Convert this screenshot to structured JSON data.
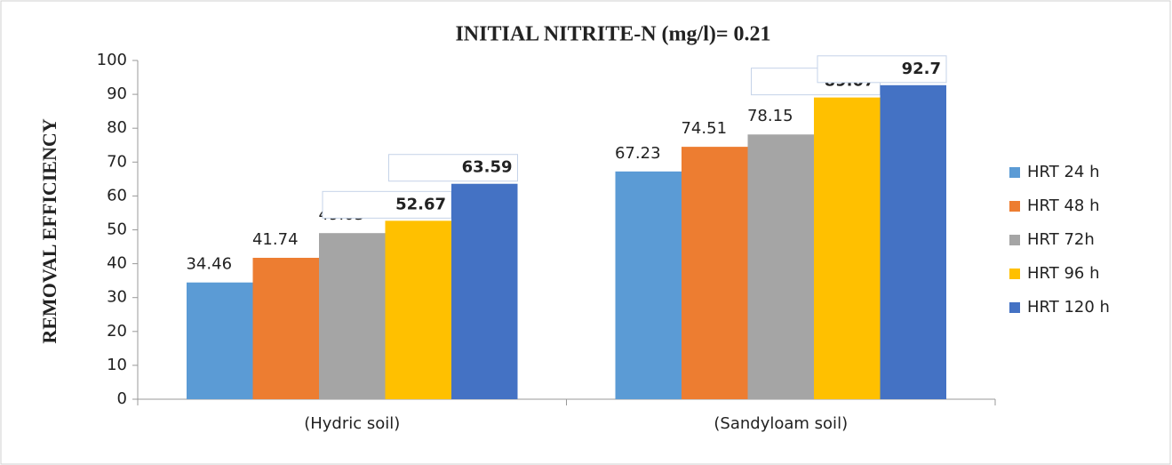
{
  "chart_data": {
    "type": "bar",
    "title": "INITIAL NITRITE-N (mg/l)= 0.21",
    "y_label": "REMOVAL EFFICIENCY",
    "categories": [
      "(Hydric soil)",
      "(Sandyloam soil)"
    ],
    "series": [
      {
        "name": "HRT 24 h",
        "color": "#5b9bd5",
        "values": [
          34.46,
          67.23
        ]
      },
      {
        "name": "HRT 48 h",
        "color": "#ed7d31",
        "values": [
          41.74,
          74.51
        ]
      },
      {
        "name": "HRT 72h",
        "color": "#a5a5a5",
        "values": [
          49.03,
          78.15
        ]
      },
      {
        "name": "HRT 96 h",
        "color": "#ffc000",
        "values": [
          52.67,
          89.07
        ]
      },
      {
        "name": "HRT 120 h",
        "color": "#4472c4",
        "values": [
          63.59,
          92.7
        ]
      }
    ],
    "ylim": [
      0,
      100
    ],
    "yticks": [
      0,
      10,
      20,
      30,
      40,
      50,
      60,
      70,
      80,
      90,
      100
    ],
    "legend": "right"
  }
}
